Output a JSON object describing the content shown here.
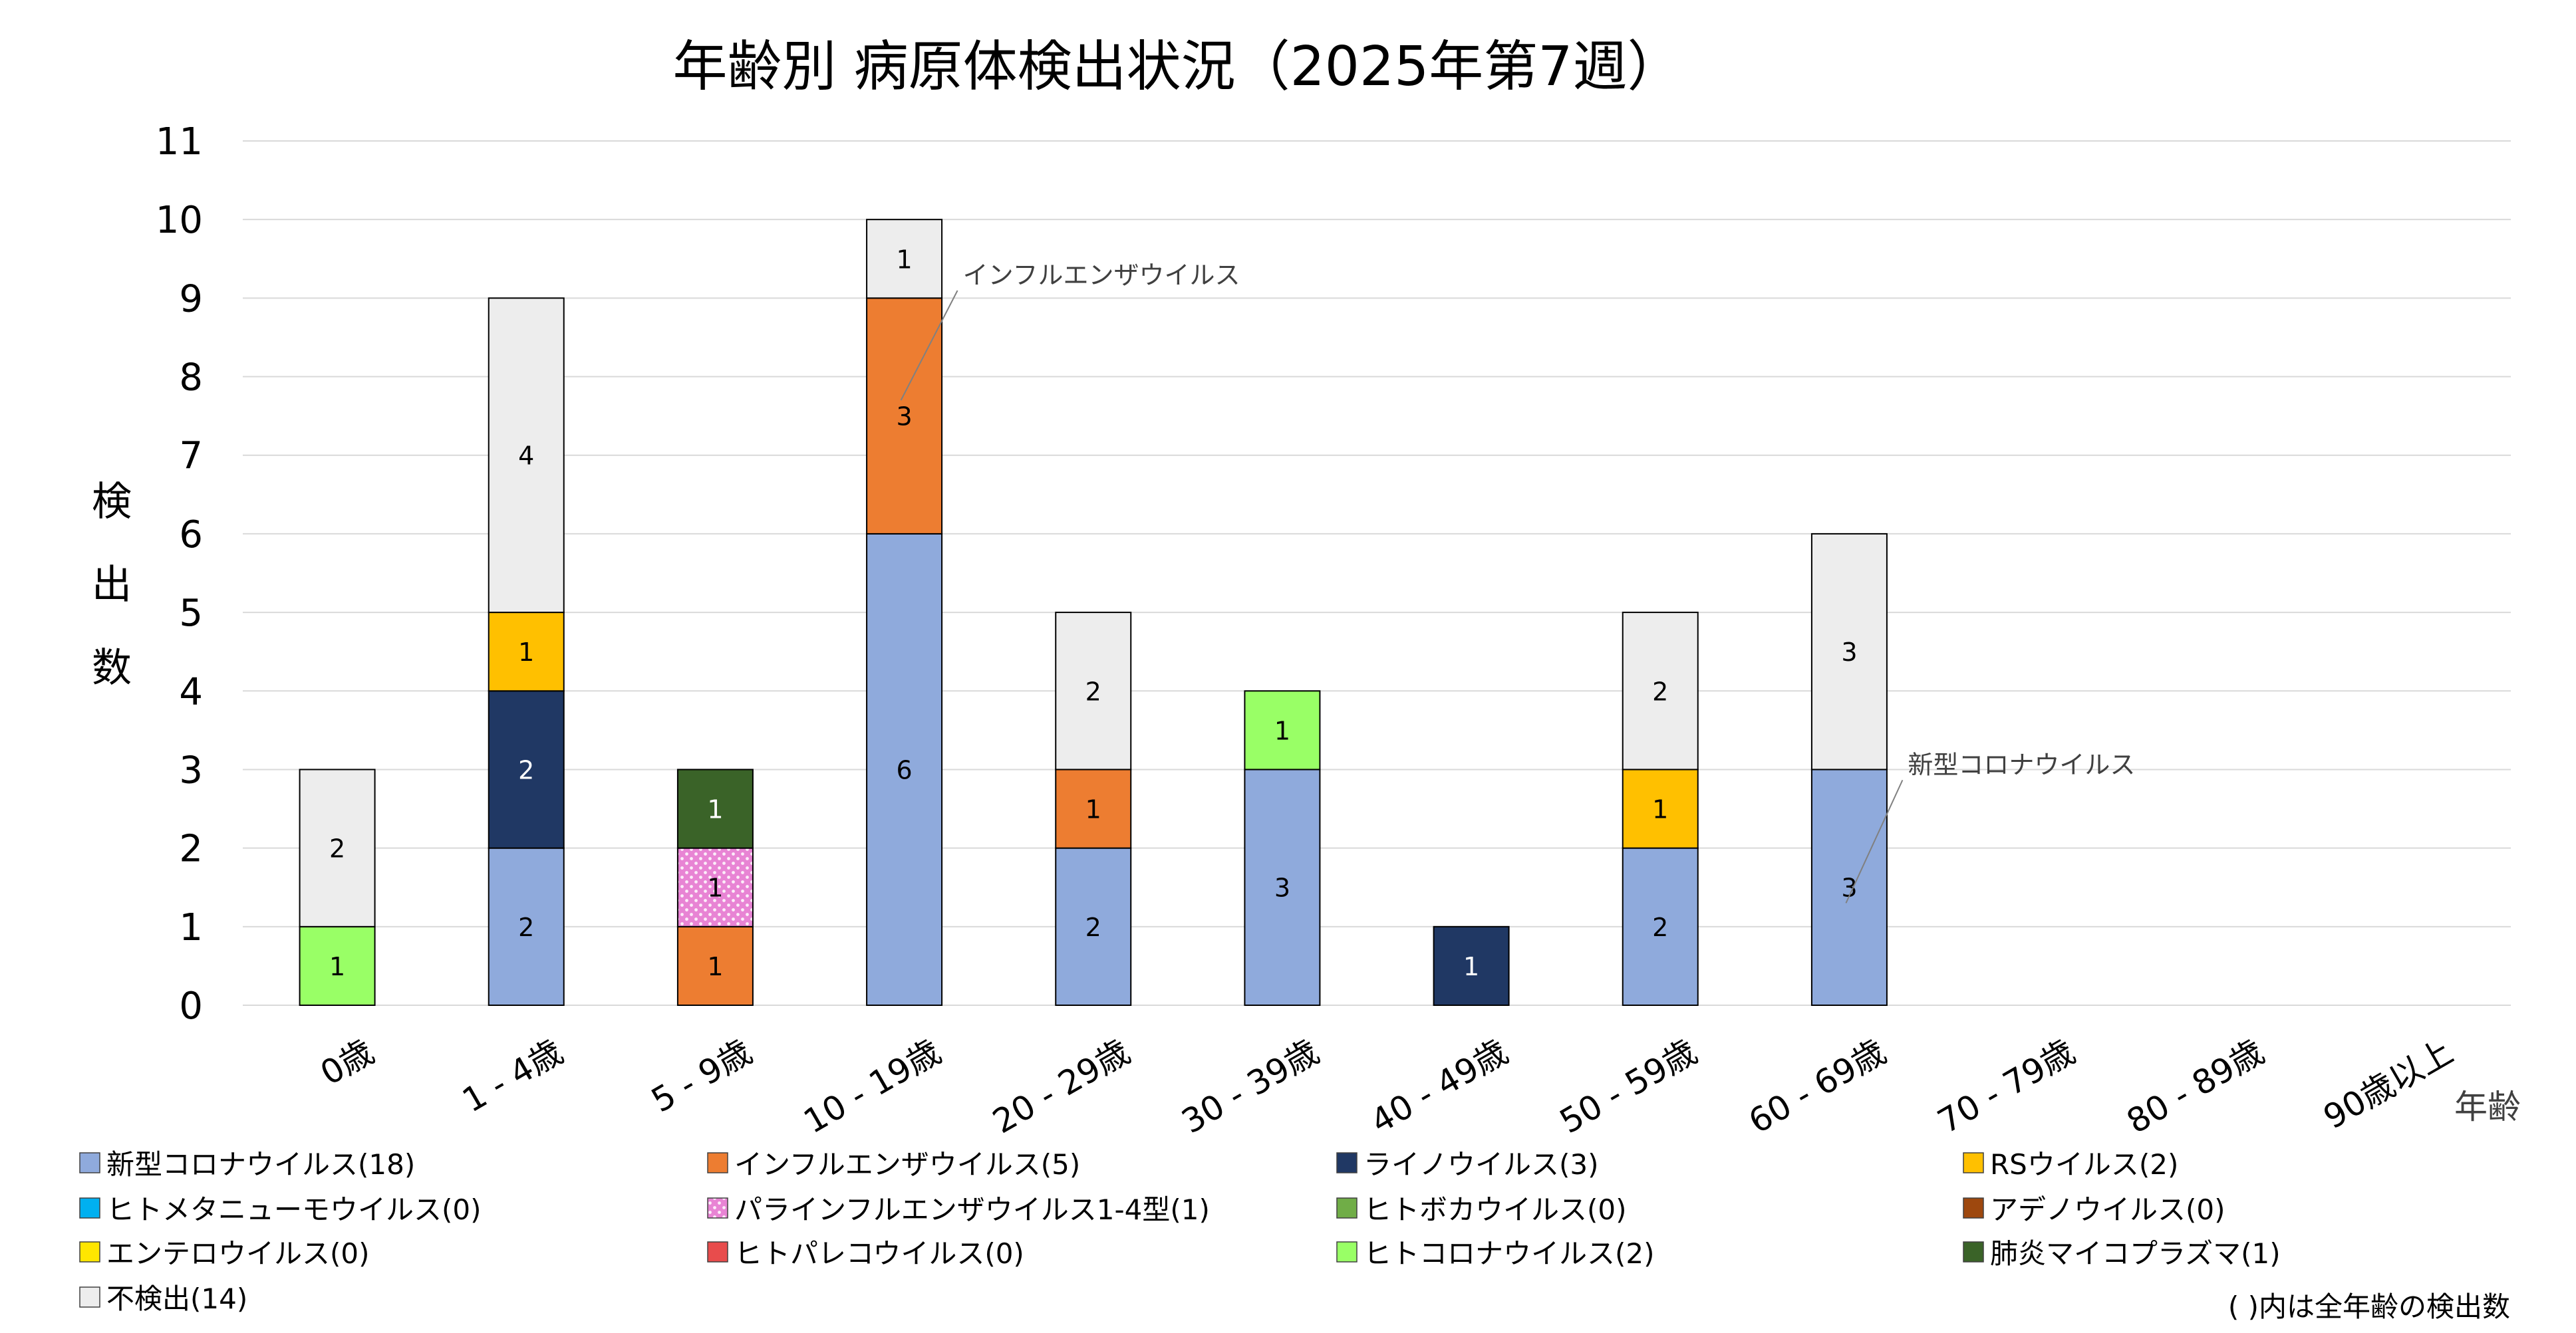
{
  "chart_data": {
    "type": "bar",
    "stacked": true,
    "title": "年齢別 病原体検出状況（2025年第7週）",
    "ylabel": "検出数",
    "xlabel": "年齢",
    "ylim": [
      0,
      11
    ],
    "yticks": [
      0,
      1,
      2,
      3,
      4,
      5,
      6,
      7,
      8,
      9,
      10,
      11
    ],
    "grid": true,
    "legend_position": "bottom",
    "categories": [
      "0歳",
      "1 - 4歳",
      "5 - 9歳",
      "10 - 19歳",
      "20 - 29歳",
      "30 - 39歳",
      "40 - 49歳",
      "50 - 59歳",
      "60 - 69歳",
      "70 - 79歳",
      "80 - 89歳",
      "90歳以上"
    ],
    "series": [
      {
        "name": "新型コロナウイルス(18)",
        "color": "#8FAADC",
        "values": [
          0,
          2,
          0,
          6,
          2,
          3,
          0,
          2,
          3,
          0,
          0,
          0
        ]
      },
      {
        "name": "インフルエンザウイルス(5)",
        "color": "#ED7D31",
        "values": [
          0,
          0,
          1,
          3,
          1,
          0,
          0,
          0,
          0,
          0,
          0,
          0
        ]
      },
      {
        "name": "ライノウイルス(3)",
        "color": "#203864",
        "values": [
          0,
          2,
          0,
          0,
          0,
          0,
          1,
          0,
          0,
          0,
          0,
          0
        ]
      },
      {
        "name": "RSウイルス(2)",
        "color": "#FFC000",
        "values": [
          0,
          1,
          0,
          0,
          0,
          0,
          0,
          1,
          0,
          0,
          0,
          0
        ]
      },
      {
        "name": "ヒトメタニューモウイルス(0)",
        "color": "#00B0F0",
        "values": [
          0,
          0,
          0,
          0,
          0,
          0,
          0,
          0,
          0,
          0,
          0,
          0
        ]
      },
      {
        "name": "パラインフルエンザウイルス1-4型(1)",
        "color": "#E884D4",
        "pattern": "dots",
        "values": [
          0,
          0,
          1,
          0,
          0,
          0,
          0,
          0,
          0,
          0,
          0,
          0
        ]
      },
      {
        "name": "ヒトボカウイルス(0)",
        "color": "#70AD47",
        "values": [
          0,
          0,
          0,
          0,
          0,
          0,
          0,
          0,
          0,
          0,
          0,
          0
        ]
      },
      {
        "name": "アデノウイルス(0)",
        "color": "#9E480E",
        "values": [
          0,
          0,
          0,
          0,
          0,
          0,
          0,
          0,
          0,
          0,
          0,
          0
        ]
      },
      {
        "name": "エンテロウイルス(0)",
        "color": "#FFE600",
        "values": [
          0,
          0,
          0,
          0,
          0,
          0,
          0,
          0,
          0,
          0,
          0,
          0
        ]
      },
      {
        "name": "ヒトパレコウイルス(0)",
        "color": "#E84C4C",
        "values": [
          0,
          0,
          0,
          0,
          0,
          0,
          0,
          0,
          0,
          0,
          0,
          0
        ]
      },
      {
        "name": "ヒトコロナウイルス(2)",
        "color": "#99FF66",
        "values": [
          1,
          0,
          0,
          0,
          0,
          1,
          0,
          0,
          0,
          0,
          0,
          0
        ]
      },
      {
        "name": "肺炎マイコプラズマ(1)",
        "color": "#3A6328",
        "values": [
          0,
          0,
          1,
          0,
          0,
          0,
          0,
          0,
          0,
          0,
          0,
          0
        ]
      },
      {
        "name": "不検出(14)",
        "color": "#EDEDED",
        "values": [
          2,
          4,
          0,
          1,
          2,
          0,
          0,
          2,
          3,
          0,
          0,
          0
        ]
      }
    ],
    "annotations": [
      {
        "text": "インフルエンザウイルス",
        "category": "10 - 19歳",
        "y": 7.7
      },
      {
        "text": "新型コロナウイルス",
        "category": "60 - 69歳",
        "y": 1.3
      }
    ],
    "legend_note": "( )内は全年齢の検出数"
  }
}
